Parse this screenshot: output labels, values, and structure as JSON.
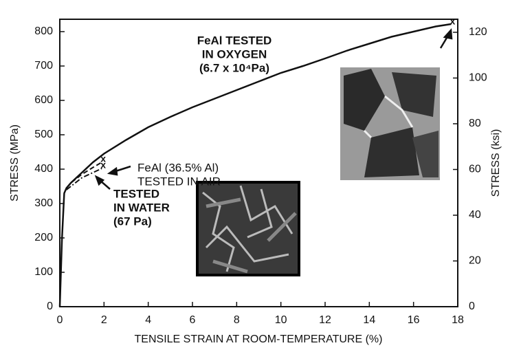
{
  "chart_data": {
    "type": "line",
    "xlabel": "TENSILE STRAIN AT ROOM-TEMPERATURE (%)",
    "ylabel": "STRESS (MPa)",
    "y2label": "STRESS (ksi)",
    "xlim": [
      0,
      18
    ],
    "ylim": [
      0,
      836
    ],
    "y2lim": [
      0,
      125.7
    ],
    "xticks": [
      0,
      2,
      4,
      6,
      8,
      10,
      12,
      14,
      16,
      18
    ],
    "yticks": [
      0,
      100,
      200,
      300,
      400,
      500,
      600,
      700,
      800
    ],
    "y2ticks": [
      0,
      20,
      40,
      60,
      80,
      100,
      120
    ],
    "fracture_marker": "x",
    "series": [
      {
        "color": "#111111",
        "dash": "solid",
        "x": [
          0,
          0.1,
          0.2,
          0.3,
          0.5,
          1,
          1.5,
          2,
          3,
          4,
          5,
          6,
          7,
          8,
          9,
          10,
          11,
          12,
          13,
          14,
          15,
          16,
          17,
          17.7
        ],
        "values": [
          0,
          200,
          330,
          345,
          360,
          390,
          420,
          445,
          485,
          522,
          552,
          580,
          605,
          630,
          655,
          680,
          700,
          722,
          745,
          765,
          785,
          800,
          815,
          822
        ]
      },
      {
        "color": "#111111",
        "dash": "dashed",
        "x": [
          0.3,
          0.5,
          1,
          1.5,
          1.9
        ],
        "values": [
          345,
          360,
          385,
          405,
          420
        ]
      },
      {
        "color": "#111111",
        "dash": "dashdot",
        "x": [
          0.3,
          0.6,
          1,
          1.5,
          1.9
        ],
        "values": [
          340,
          355,
          375,
          390,
          402
        ]
      }
    ],
    "annotations": [
      {
        "lines": [
          "FeAl TESTED",
          "IN OXYGEN",
          "(6.7 x 10⁴Pa)"
        ]
      },
      {
        "lines": [
          "FeAl (36.5% Al)",
          "TESTED IN AIR"
        ]
      },
      {
        "lines": [
          "TESTED",
          "IN WATER",
          "(67 Pa)"
        ]
      }
    ]
  }
}
